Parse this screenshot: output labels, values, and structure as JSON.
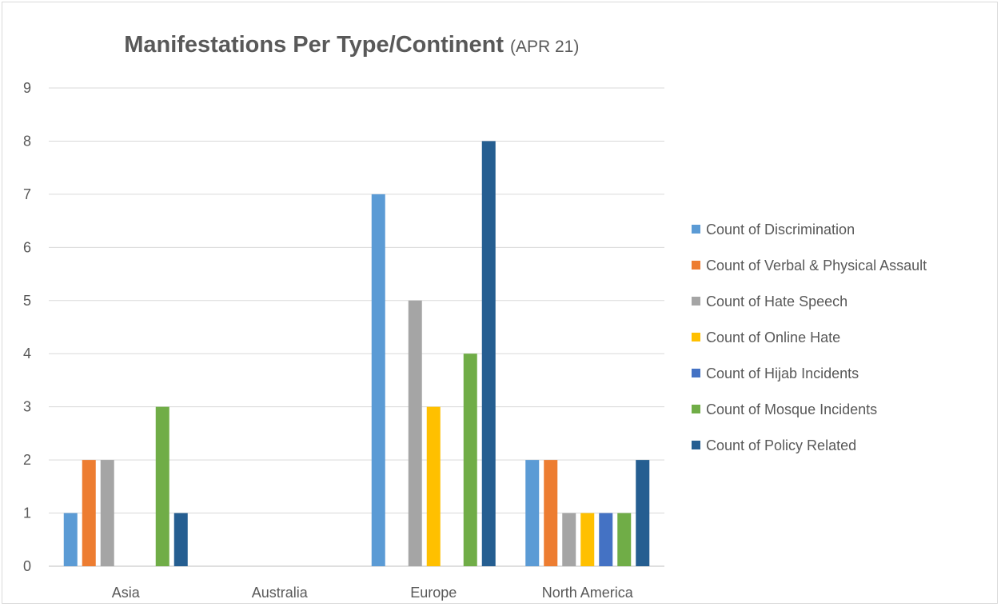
{
  "chart_data": {
    "type": "bar",
    "title": "Manifestations Per Type/Continent",
    "subtitle": "(APR 21)",
    "xlabel": "",
    "ylabel": "",
    "categories": [
      "Asia",
      "Australia",
      "Europe",
      "North America"
    ],
    "ylim": [
      0,
      9
    ],
    "yticks": [
      0,
      1,
      2,
      3,
      4,
      5,
      6,
      7,
      8,
      9
    ],
    "grid": true,
    "legend_position": "right",
    "series": [
      {
        "name": "Count of Discrimination",
        "color": "#5b9bd5",
        "values": [
          1,
          0,
          7,
          2
        ]
      },
      {
        "name": "Count of Verbal & Physical Assault",
        "color": "#ed7d31",
        "values": [
          2,
          0,
          0,
          2
        ]
      },
      {
        "name": "Count of Hate Speech",
        "color": "#a5a5a5",
        "values": [
          2,
          0,
          5,
          1
        ]
      },
      {
        "name": "Count of Online Hate",
        "color": "#ffc000",
        "values": [
          0,
          0,
          3,
          1
        ]
      },
      {
        "name": "Count of Hijab Incidents",
        "color": "#4472c4",
        "values": [
          0,
          0,
          0,
          1
        ]
      },
      {
        "name": "Count of Mosque Incidents",
        "color": "#70ad47",
        "values": [
          3,
          0,
          4,
          1
        ]
      },
      {
        "name": "Count of Policy Related",
        "color": "#255e91",
        "values": [
          1,
          0,
          8,
          2
        ]
      }
    ]
  }
}
